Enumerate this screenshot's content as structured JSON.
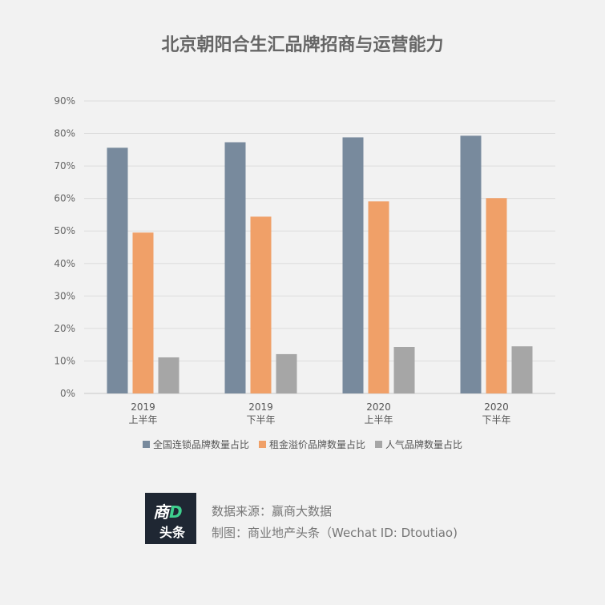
{
  "chart_data": {
    "type": "bar",
    "title": "北京朝阳合生汇品牌招商与运营能力",
    "categories": [
      [
        "2019",
        "上半年"
      ],
      [
        "2019",
        "下半年"
      ],
      [
        "2020",
        "上半年"
      ],
      [
        "2020",
        "下半年"
      ]
    ],
    "series": [
      {
        "name": "全国连锁品牌数量占比",
        "color": "#788a9d",
        "values": [
          75.6,
          77.3,
          78.8,
          79.3
        ]
      },
      {
        "name": "租金溢价品牌数量占比",
        "color": "#f0a068",
        "values": [
          49.5,
          54.4,
          59.1,
          60.1
        ]
      },
      {
        "name": "人气品牌数量占比",
        "color": "#a6a6a6",
        "values": [
          11.1,
          12.1,
          14.3,
          14.5
        ]
      }
    ],
    "ylim": [
      0,
      90
    ],
    "yticks": [
      "0%",
      "10%",
      "20%",
      "30%",
      "40%",
      "50%",
      "60%",
      "70%",
      "80%",
      "90%"
    ],
    "grid": true,
    "legend": "bottom"
  },
  "footer": {
    "logo_text": "商D头条",
    "source": "数据来源：赢商大数据",
    "credit": "制图：商业地产头条（Wechat ID: Dtoutiao)"
  }
}
